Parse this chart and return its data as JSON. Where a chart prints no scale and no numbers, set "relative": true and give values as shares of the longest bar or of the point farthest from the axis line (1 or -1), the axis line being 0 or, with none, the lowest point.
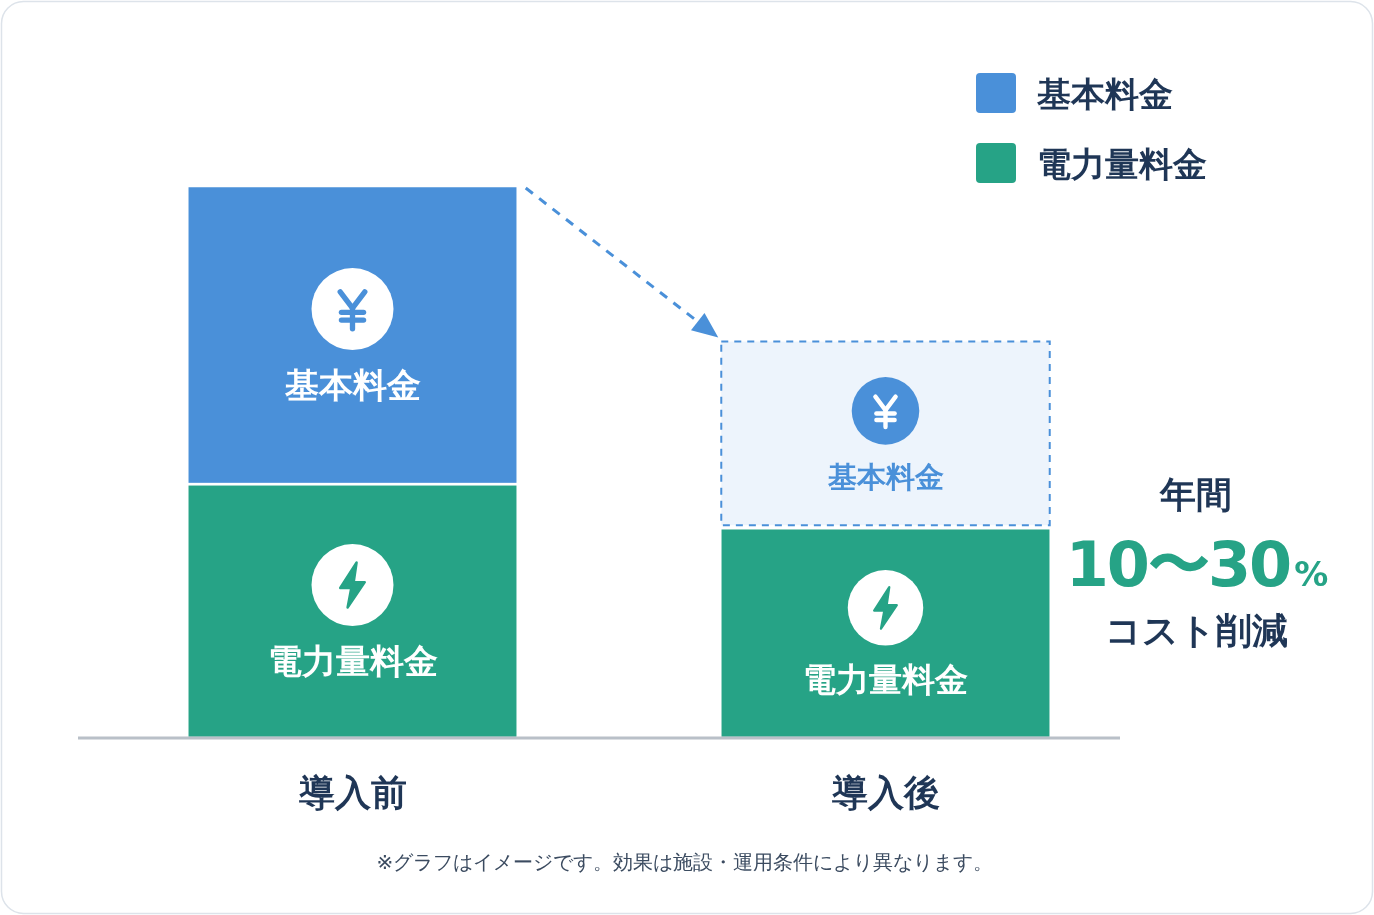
{
  "chart_data": {
    "type": "bar",
    "stacked": true,
    "relative": true,
    "categories": [
      "導入前",
      "導入後"
    ],
    "series": [
      {
        "name": "電力量料金",
        "color": "#26a386",
        "values": [
          0.46,
          0.38
        ]
      },
      {
        "name": "基本料金",
        "color": "#4a90d9",
        "colors": [
          "#4a90d9",
          "#edf4fc"
        ],
        "values": [
          0.54,
          0.34
        ]
      }
    ],
    "legend": "top right",
    "annotations": [
      "年間",
      "10〜30%",
      "コスト削減",
      "※グラフはイメージです。効果は施設・運用条件により異なります。"
    ]
  }
}
